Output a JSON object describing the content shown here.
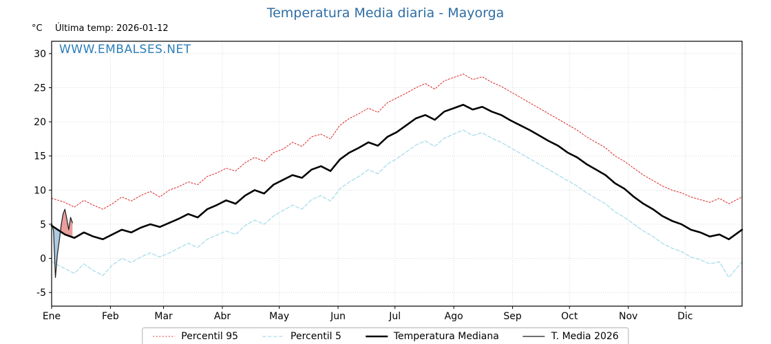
{
  "header": {
    "title": "Temperatura Media diaria - Mayorga",
    "units": "°C",
    "last_temp": "Última temp: 2026-01-12",
    "watermark": "WWW.EMBALSES.NET"
  },
  "colors": {
    "title": "#2e6da4",
    "watermark": "#1f77b4",
    "axis": "#000000"
  },
  "chart_data": {
    "type": "line",
    "title": "Temperatura Media diaria - Mayorga",
    "xlabel": "",
    "ylabel": "°C",
    "ylim": [
      -7,
      31.8
    ],
    "yticks": [
      -5,
      0,
      5,
      10,
      15,
      20,
      25,
      30
    ],
    "grid": true,
    "grid_color": "#d8d8d8",
    "legend_position": "bottom",
    "months": [
      {
        "label": "Ene",
        "day": 1
      },
      {
        "label": "Feb",
        "day": 32
      },
      {
        "label": "Mar",
        "day": 60
      },
      {
        "label": "Abr",
        "day": 91
      },
      {
        "label": "May",
        "day": 121
      },
      {
        "label": "Jun",
        "day": 152
      },
      {
        "label": "Jul",
        "day": 182
      },
      {
        "label": "Ago",
        "day": 213
      },
      {
        "label": "Sep",
        "day": 244
      },
      {
        "label": "Oct",
        "day": 274
      },
      {
        "label": "Nov",
        "day": 305
      },
      {
        "label": "Dic",
        "day": 335
      }
    ],
    "x": [
      1,
      8,
      13,
      18,
      23,
      28,
      33,
      38,
      43,
      48,
      53,
      58,
      63,
      68,
      73,
      78,
      83,
      88,
      93,
      98,
      103,
      108,
      113,
      118,
      123,
      128,
      133,
      138,
      143,
      148,
      153,
      158,
      163,
      168,
      173,
      178,
      183,
      188,
      193,
      198,
      203,
      208,
      213,
      218,
      223,
      228,
      233,
      238,
      243,
      248,
      253,
      258,
      263,
      268,
      273,
      278,
      283,
      288,
      293,
      298,
      303,
      308,
      313,
      318,
      323,
      328,
      333,
      338,
      343,
      348,
      353,
      358,
      365
    ],
    "series": [
      {
        "id": "percentil95",
        "name": "Percentil 95",
        "color": "#dd3333",
        "style": "dotted",
        "values": [
          8.8,
          8.2,
          7.5,
          8.5,
          7.8,
          7.2,
          8.0,
          9.0,
          8.4,
          9.2,
          9.8,
          9.0,
          10.0,
          10.5,
          11.2,
          10.8,
          12.0,
          12.5,
          13.2,
          12.8,
          14.0,
          14.8,
          14.2,
          15.5,
          16.0,
          17.0,
          16.4,
          17.8,
          18.2,
          17.5,
          19.5,
          20.5,
          21.2,
          22.0,
          21.4,
          22.8,
          23.5,
          24.2,
          25.0,
          25.6,
          24.8,
          26.0,
          26.5,
          27.0,
          26.2,
          26.6,
          25.8,
          25.2,
          24.4,
          23.6,
          22.8,
          22.0,
          21.2,
          20.4,
          19.6,
          18.8,
          17.8,
          17.0,
          16.2,
          15.0,
          14.2,
          13.2,
          12.2,
          11.4,
          10.6,
          10.0,
          9.6,
          9.0,
          8.6,
          8.2,
          8.8,
          8.0,
          9.0
        ]
      },
      {
        "id": "percentil5",
        "name": "Percentil 5",
        "color": "#a6dcec",
        "style": "dashed",
        "values": [
          -0.5,
          -1.5,
          -2.2,
          -0.8,
          -1.8,
          -2.5,
          -1.0,
          0.0,
          -0.6,
          0.2,
          0.8,
          0.2,
          0.8,
          1.5,
          2.2,
          1.6,
          2.8,
          3.4,
          4.0,
          3.5,
          4.8,
          5.6,
          5.0,
          6.2,
          7.0,
          7.8,
          7.2,
          8.6,
          9.2,
          8.4,
          10.2,
          11.2,
          12.0,
          13.0,
          12.4,
          13.8,
          14.6,
          15.6,
          16.6,
          17.2,
          16.4,
          17.6,
          18.2,
          18.8,
          18.0,
          18.4,
          17.6,
          17.0,
          16.2,
          15.4,
          14.6,
          13.8,
          13.0,
          12.2,
          11.4,
          10.6,
          9.6,
          8.8,
          8.0,
          6.8,
          6.0,
          5.0,
          4.0,
          3.2,
          2.2,
          1.5,
          1.0,
          0.2,
          -0.2,
          -0.8,
          -0.5,
          -2.8,
          -0.5
        ]
      },
      {
        "id": "mediana",
        "name": "Temperatura Mediana",
        "color": "#000000",
        "style": "solid-thick",
        "values": [
          4.8,
          3.5,
          3.0,
          3.8,
          3.2,
          2.8,
          3.5,
          4.2,
          3.8,
          4.5,
          5.0,
          4.6,
          5.2,
          5.8,
          6.5,
          6.0,
          7.2,
          7.8,
          8.5,
          8.0,
          9.2,
          10.0,
          9.5,
          10.8,
          11.5,
          12.2,
          11.8,
          13.0,
          13.5,
          12.8,
          14.5,
          15.5,
          16.2,
          17.0,
          16.5,
          17.8,
          18.5,
          19.5,
          20.5,
          21.0,
          20.3,
          21.5,
          22.0,
          22.5,
          21.8,
          22.2,
          21.5,
          21.0,
          20.2,
          19.5,
          18.8,
          18.0,
          17.2,
          16.5,
          15.5,
          14.8,
          13.8,
          13.0,
          12.2,
          11.0,
          10.2,
          9.0,
          8.0,
          7.2,
          6.2,
          5.5,
          5.0,
          4.2,
          3.8,
          3.2,
          3.5,
          2.8,
          4.2
        ]
      },
      {
        "id": "t2026",
        "name": "T. Media 2026",
        "color": "#1a1a1a",
        "style": "solid-thin",
        "x": [
          1,
          2,
          3,
          4,
          5,
          6,
          7,
          8,
          9,
          10,
          11,
          12
        ],
        "values": [
          5.2,
          4.0,
          -2.8,
          0.5,
          2.5,
          4.8,
          6.5,
          7.2,
          5.8,
          4.2,
          6.0,
          5.2
        ]
      }
    ],
    "band": {
      "description": "area between T. Media 2026 and Temperatura Mediana",
      "below_color": "#6b9ec7",
      "above_color": "#d94f4f",
      "opacity": 0.55
    }
  }
}
